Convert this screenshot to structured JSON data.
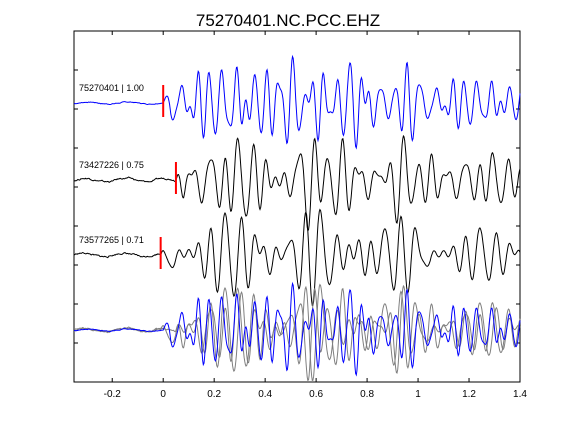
{
  "chart_data": {
    "type": "line",
    "title": "75270401.NC.PCC.EHZ",
    "xlabel": "",
    "ylabel": "",
    "xlim": [
      -0.35,
      1.4
    ],
    "xticks": [
      -0.2,
      0,
      0.2,
      0.4,
      0.6,
      0.8,
      1,
      1.2,
      1.4
    ],
    "xtick_labels": [
      "-0.2",
      "0",
      "0.2",
      "0.4",
      "0.6",
      "0.8",
      "1",
      "1.2",
      "1.4"
    ],
    "grid": false,
    "legend": "none",
    "colors": {
      "reference": "#0000ff",
      "other": "#000000",
      "overlay_other": "#7f7f7f",
      "pick": "#ff0000",
      "axes": "#000000"
    },
    "traces": [
      {
        "name": "75270401 | 1.00",
        "color": "#0000ff",
        "pick_time": 0.0,
        "onset": 0.0,
        "components": [
          [
            18,
            0.7,
            0.0
          ],
          [
            22,
            0.55,
            1.3
          ],
          [
            27,
            0.4,
            2.6
          ],
          [
            14,
            0.3,
            0.9
          ],
          [
            33,
            0.22,
            4.1
          ]
        ],
        "pre_noise": 0.06
      },
      {
        "name": "73427226 | 0.75",
        "color": "#000000",
        "pick_time": 0.05,
        "onset": 0.05,
        "components": [
          [
            17,
            0.75,
            0.4
          ],
          [
            20,
            0.5,
            2.0
          ],
          [
            12,
            0.35,
            3.1
          ],
          [
            26,
            0.3,
            1.1
          ],
          [
            9,
            0.2,
            0.5
          ]
        ],
        "pre_noise": 0.12
      },
      {
        "name": "73577265 | 0.71",
        "color": "#000000",
        "pick_time": -0.01,
        "onset": -0.01,
        "components": [
          [
            16,
            0.75,
            1.0
          ],
          [
            19,
            0.55,
            2.4
          ],
          [
            13,
            0.35,
            0.2
          ],
          [
            24,
            0.3,
            3.3
          ],
          [
            8,
            0.2,
            1.7
          ]
        ],
        "pre_noise": 0.12
      }
    ]
  }
}
